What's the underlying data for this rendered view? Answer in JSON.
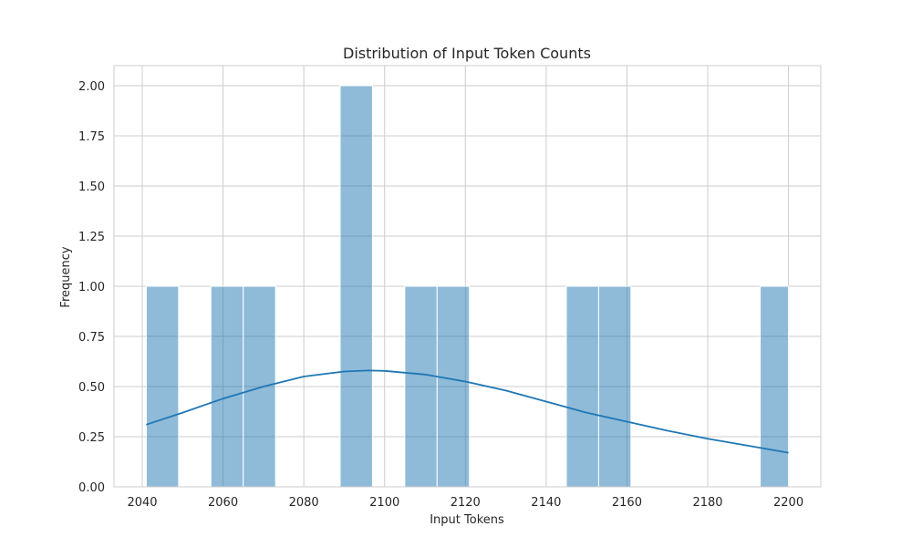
{
  "chart_data": {
    "type": "bar",
    "title": "Distribution of Input Token Counts",
    "xlabel": "Input Tokens",
    "ylabel": "Frequency",
    "xlim": [
      2033,
      2208
    ],
    "ylim": [
      0,
      2.1
    ],
    "xticks": [
      2040,
      2060,
      2080,
      2100,
      2120,
      2140,
      2160,
      2180,
      2200
    ],
    "yticks": [
      0,
      0.25,
      0.5,
      0.75,
      1.0,
      1.25,
      1.5,
      1.75,
      2.0
    ],
    "ytick_labels": [
      "0.00",
      "0.25",
      "0.50",
      "0.75",
      "1.00",
      "1.25",
      "1.50",
      "1.75",
      "2.00"
    ],
    "grid": true,
    "bins": [
      {
        "x0": 2041,
        "x1": 2049,
        "count": 1
      },
      {
        "x0": 2049,
        "x1": 2057,
        "count": 0
      },
      {
        "x0": 2057,
        "x1": 2065,
        "count": 1
      },
      {
        "x0": 2065,
        "x1": 2073,
        "count": 1
      },
      {
        "x0": 2073,
        "x1": 2081,
        "count": 0
      },
      {
        "x0": 2081,
        "x1": 2089,
        "count": 0
      },
      {
        "x0": 2089,
        "x1": 2097,
        "count": 2
      },
      {
        "x0": 2097,
        "x1": 2105,
        "count": 0
      },
      {
        "x0": 2105,
        "x1": 2113,
        "count": 1
      },
      {
        "x0": 2113,
        "x1": 2121,
        "count": 1
      },
      {
        "x0": 2121,
        "x1": 2129,
        "count": 0
      },
      {
        "x0": 2129,
        "x1": 2137,
        "count": 0
      },
      {
        "x0": 2137,
        "x1": 2145,
        "count": 0
      },
      {
        "x0": 2145,
        "x1": 2153,
        "count": 1
      },
      {
        "x0": 2153,
        "x1": 2161,
        "count": 1
      },
      {
        "x0": 2161,
        "x1": 2169,
        "count": 0
      },
      {
        "x0": 2169,
        "x1": 2177,
        "count": 0
      },
      {
        "x0": 2177,
        "x1": 2185,
        "count": 0
      },
      {
        "x0": 2185,
        "x1": 2193,
        "count": 0
      },
      {
        "x0": 2193,
        "x1": 2200,
        "count": 1
      }
    ],
    "kde": {
      "x": [
        2041,
        2050,
        2060,
        2070,
        2080,
        2090,
        2096,
        2100,
        2110,
        2120,
        2130,
        2140,
        2150,
        2160,
        2170,
        2180,
        2190,
        2200
      ],
      "y": [
        0.31,
        0.37,
        0.44,
        0.5,
        0.55,
        0.575,
        0.58,
        0.578,
        0.56,
        0.525,
        0.48,
        0.425,
        0.37,
        0.325,
        0.28,
        0.24,
        0.205,
        0.17
      ]
    },
    "colors": {
      "bar_fill": "#1f77b4",
      "bar_opacity": 0.5,
      "kde_line": "#1f77b4",
      "grid": "#cccccc",
      "text": "#262626"
    }
  }
}
